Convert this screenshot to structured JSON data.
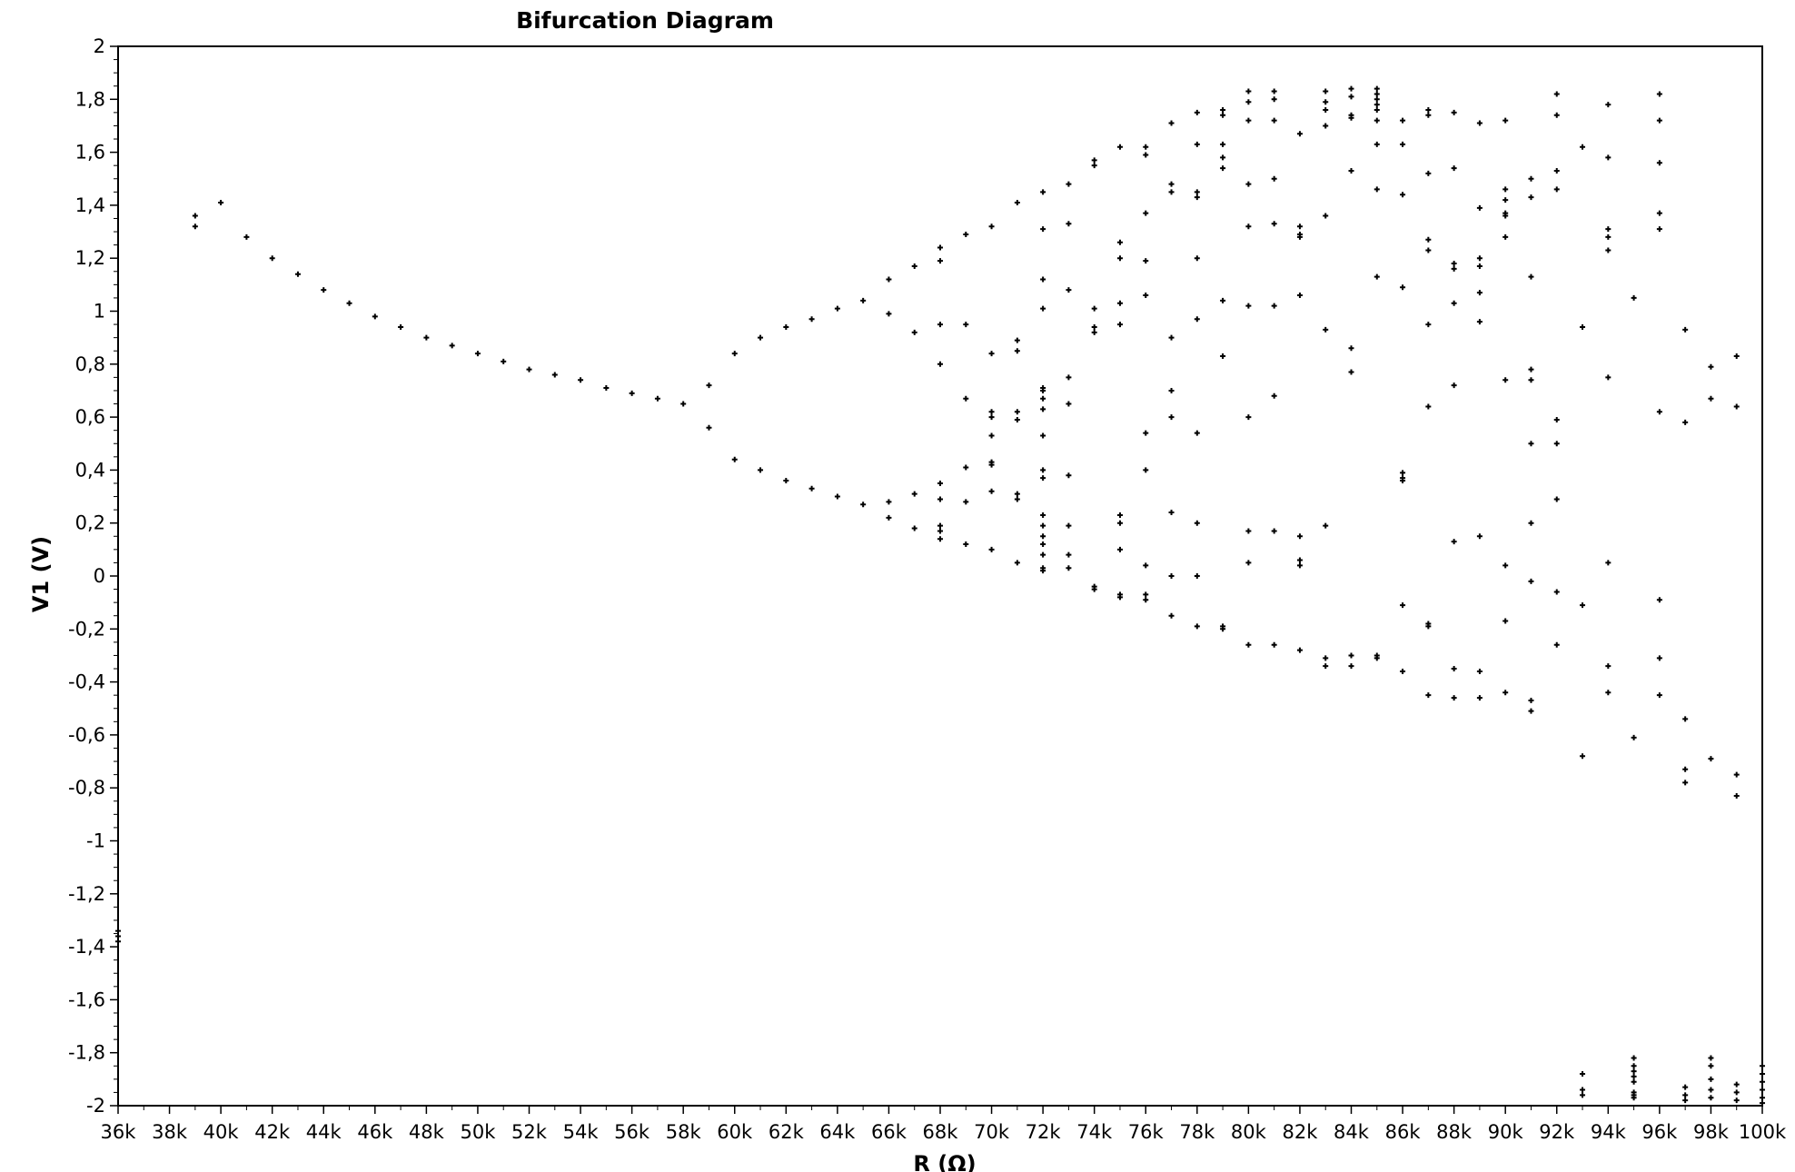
{
  "chart_data": {
    "type": "scatter",
    "title": "Bifurcation  Diagram",
    "xlabel": "R  (Ω)",
    "ylabel": "V1 (V)",
    "xlim": [
      36,
      100
    ],
    "ylim": [
      -2,
      2
    ],
    "x_unit_suffix": "k",
    "x_ticks": [
      "36k",
      "38k",
      "40k",
      "42k",
      "44k",
      "46k",
      "48k",
      "50k",
      "52k",
      "54k",
      "56k",
      "58k",
      "60k",
      "62k",
      "64k",
      "66k",
      "68k",
      "70k",
      "72k",
      "74k",
      "76k",
      "78k",
      "80k",
      "82k",
      "84k",
      "86k",
      "88k",
      "90k",
      "92k",
      "94k",
      "96k",
      "98k",
      "100k"
    ],
    "y_ticks": [
      "2",
      "1,8",
      "1,6",
      "1,4",
      "1,2",
      "1",
      "0,8",
      "0,6",
      "0,4",
      "0,2",
      "0",
      "-0,2",
      "-0,4",
      "-0,6",
      "-0,8",
      "-1",
      "-1,2",
      "-1,4",
      "-1,6",
      "-1,8",
      "-2"
    ],
    "grid": false,
    "marker_color": "#000000",
    "points": [
      [
        36,
        -1.36
      ],
      [
        36,
        -1.38
      ],
      [
        36,
        -1.34
      ],
      [
        39,
        1.36
      ],
      [
        39,
        1.32
      ],
      [
        40,
        1.41
      ],
      [
        41,
        1.28
      ],
      [
        42,
        1.2
      ],
      [
        43,
        1.14
      ],
      [
        44,
        1.08
      ],
      [
        45,
        1.03
      ],
      [
        46,
        0.98
      ],
      [
        47,
        0.94
      ],
      [
        48,
        0.9
      ],
      [
        49,
        0.87
      ],
      [
        50,
        0.84
      ],
      [
        51,
        0.81
      ],
      [
        52,
        0.78
      ],
      [
        53,
        0.76
      ],
      [
        54,
        0.74
      ],
      [
        55,
        0.71
      ],
      [
        56,
        0.69
      ],
      [
        57,
        0.67
      ],
      [
        58,
        0.65
      ],
      [
        59,
        0.72
      ],
      [
        59,
        0.56
      ],
      [
        60,
        0.84
      ],
      [
        60,
        0.44
      ],
      [
        61,
        0.9
      ],
      [
        61,
        0.4
      ],
      [
        62,
        0.94
      ],
      [
        62,
        0.36
      ],
      [
        63,
        0.97
      ],
      [
        63,
        0.33
      ],
      [
        64,
        1.01
      ],
      [
        64,
        0.3
      ],
      [
        65,
        1.04
      ],
      [
        65,
        0.27
      ],
      [
        66,
        1.12
      ],
      [
        66,
        0.99
      ],
      [
        66,
        0.28
      ],
      [
        66,
        0.22
      ],
      [
        67,
        1.17
      ],
      [
        67,
        0.92
      ],
      [
        67,
        0.31
      ],
      [
        67,
        0.18
      ],
      [
        68,
        1.24
      ],
      [
        68,
        1.19
      ],
      [
        68,
        0.95
      ],
      [
        68,
        0.8
      ],
      [
        68,
        0.35
      ],
      [
        68,
        0.29
      ],
      [
        68,
        0.19
      ],
      [
        68,
        0.17
      ],
      [
        68,
        0.14
      ],
      [
        69,
        1.29
      ],
      [
        69,
        0.95
      ],
      [
        69,
        0.67
      ],
      [
        69,
        0.41
      ],
      [
        69,
        0.28
      ],
      [
        69,
        0.12
      ],
      [
        70,
        1.32
      ],
      [
        70,
        0.84
      ],
      [
        70,
        0.62
      ],
      [
        70,
        0.6
      ],
      [
        70,
        0.53
      ],
      [
        70,
        0.43
      ],
      [
        70,
        0.42
      ],
      [
        70,
        0.32
      ],
      [
        70,
        0.1
      ],
      [
        71,
        1.41
      ],
      [
        71,
        0.89
      ],
      [
        71,
        0.85
      ],
      [
        71,
        0.62
      ],
      [
        71,
        0.59
      ],
      [
        71,
        0.31
      ],
      [
        71,
        0.29
      ],
      [
        71,
        0.05
      ],
      [
        72,
        1.45
      ],
      [
        72,
        1.31
      ],
      [
        72,
        1.12
      ],
      [
        72,
        1.01
      ],
      [
        72,
        0.71
      ],
      [
        72,
        0.7
      ],
      [
        72,
        0.67
      ],
      [
        72,
        0.63
      ],
      [
        72,
        0.53
      ],
      [
        72,
        0.4
      ],
      [
        72,
        0.37
      ],
      [
        72,
        0.23
      ],
      [
        72,
        0.19
      ],
      [
        72,
        0.15
      ],
      [
        72,
        0.12
      ],
      [
        72,
        0.08
      ],
      [
        72,
        0.03
      ],
      [
        72,
        0.02
      ],
      [
        73,
        1.48
      ],
      [
        73,
        1.33
      ],
      [
        73,
        1.08
      ],
      [
        73,
        0.75
      ],
      [
        73,
        0.65
      ],
      [
        73,
        0.38
      ],
      [
        73,
        0.19
      ],
      [
        73,
        0.08
      ],
      [
        73,
        0.03
      ],
      [
        74,
        1.57
      ],
      [
        74,
        1.55
      ],
      [
        74,
        1.01
      ],
      [
        74,
        0.94
      ],
      [
        74,
        0.92
      ],
      [
        74,
        -0.04
      ],
      [
        74,
        -0.05
      ],
      [
        75,
        1.62
      ],
      [
        75,
        1.26
      ],
      [
        75,
        1.2
      ],
      [
        75,
        1.03
      ],
      [
        75,
        0.95
      ],
      [
        75,
        0.23
      ],
      [
        75,
        0.2
      ],
      [
        75,
        0.1
      ],
      [
        75,
        -0.07
      ],
      [
        75,
        -0.08
      ],
      [
        76,
        1.62
      ],
      [
        76,
        1.59
      ],
      [
        76,
        1.37
      ],
      [
        76,
        1.19
      ],
      [
        76,
        1.06
      ],
      [
        76,
        0.54
      ],
      [
        76,
        0.4
      ],
      [
        76,
        0.04
      ],
      [
        76,
        -0.07
      ],
      [
        76,
        -0.09
      ],
      [
        77,
        1.71
      ],
      [
        77,
        1.48
      ],
      [
        77,
        1.45
      ],
      [
        77,
        0.9
      ],
      [
        77,
        0.7
      ],
      [
        77,
        0.6
      ],
      [
        77,
        0.24
      ],
      [
        77,
        0.0
      ],
      [
        77,
        -0.15
      ],
      [
        78,
        1.75
      ],
      [
        78,
        1.63
      ],
      [
        78,
        1.45
      ],
      [
        78,
        1.43
      ],
      [
        78,
        1.2
      ],
      [
        78,
        0.97
      ],
      [
        78,
        0.54
      ],
      [
        78,
        0.2
      ],
      [
        78,
        0.0
      ],
      [
        78,
        -0.19
      ],
      [
        79,
        1.76
      ],
      [
        79,
        1.74
      ],
      [
        79,
        1.63
      ],
      [
        79,
        1.58
      ],
      [
        79,
        1.54
      ],
      [
        79,
        1.04
      ],
      [
        79,
        0.83
      ],
      [
        79,
        -0.19
      ],
      [
        79,
        -0.2
      ],
      [
        80,
        1.83
      ],
      [
        80,
        1.79
      ],
      [
        80,
        1.72
      ],
      [
        80,
        1.48
      ],
      [
        80,
        1.32
      ],
      [
        80,
        1.02
      ],
      [
        80,
        0.6
      ],
      [
        80,
        0.17
      ],
      [
        80,
        0.05
      ],
      [
        80,
        -0.26
      ],
      [
        81,
        1.83
      ],
      [
        81,
        1.8
      ],
      [
        81,
        1.72
      ],
      [
        81,
        1.5
      ],
      [
        81,
        1.33
      ],
      [
        81,
        1.02
      ],
      [
        81,
        0.68
      ],
      [
        81,
        0.17
      ],
      [
        81,
        -0.26
      ],
      [
        82,
        1.67
      ],
      [
        82,
        1.32
      ],
      [
        82,
        1.29
      ],
      [
        82,
        1.28
      ],
      [
        82,
        1.06
      ],
      [
        82,
        0.15
      ],
      [
        82,
        0.06
      ],
      [
        82,
        0.04
      ],
      [
        82,
        -0.28
      ],
      [
        83,
        1.83
      ],
      [
        83,
        1.79
      ],
      [
        83,
        1.76
      ],
      [
        83,
        1.7
      ],
      [
        83,
        1.36
      ],
      [
        83,
        0.93
      ],
      [
        83,
        0.19
      ],
      [
        83,
        -0.31
      ],
      [
        83,
        -0.34
      ],
      [
        84,
        1.84
      ],
      [
        84,
        1.81
      ],
      [
        84,
        1.74
      ],
      [
        84,
        1.73
      ],
      [
        84,
        1.53
      ],
      [
        84,
        0.86
      ],
      [
        84,
        0.77
      ],
      [
        84,
        -0.3
      ],
      [
        84,
        -0.34
      ],
      [
        85,
        1.84
      ],
      [
        85,
        1.82
      ],
      [
        85,
        1.8
      ],
      [
        85,
        1.78
      ],
      [
        85,
        1.76
      ],
      [
        85,
        1.72
      ],
      [
        85,
        1.63
      ],
      [
        85,
        1.46
      ],
      [
        85,
        1.13
      ],
      [
        85,
        -0.3
      ],
      [
        85,
        -0.31
      ],
      [
        86,
        1.72
      ],
      [
        86,
        1.63
      ],
      [
        86,
        1.44
      ],
      [
        86,
        1.09
      ],
      [
        86,
        0.39
      ],
      [
        86,
        0.37
      ],
      [
        86,
        0.36
      ],
      [
        86,
        -0.11
      ],
      [
        86,
        -0.36
      ],
      [
        87,
        1.76
      ],
      [
        87,
        1.74
      ],
      [
        87,
        1.52
      ],
      [
        87,
        1.27
      ],
      [
        87,
        1.23
      ],
      [
        87,
        0.95
      ],
      [
        87,
        0.64
      ],
      [
        87,
        -0.18
      ],
      [
        87,
        -0.19
      ],
      [
        87,
        -0.45
      ],
      [
        88,
        1.75
      ],
      [
        88,
        1.54
      ],
      [
        88,
        1.18
      ],
      [
        88,
        1.16
      ],
      [
        88,
        1.03
      ],
      [
        88,
        0.72
      ],
      [
        88,
        0.13
      ],
      [
        88,
        -0.35
      ],
      [
        88,
        -0.46
      ],
      [
        89,
        1.71
      ],
      [
        89,
        1.39
      ],
      [
        89,
        1.2
      ],
      [
        89,
        1.17
      ],
      [
        89,
        1.07
      ],
      [
        89,
        0.96
      ],
      [
        89,
        0.15
      ],
      [
        89,
        -0.36
      ],
      [
        89,
        -0.46
      ],
      [
        90,
        1.72
      ],
      [
        90,
        1.46
      ],
      [
        90,
        1.42
      ],
      [
        90,
        1.37
      ],
      [
        90,
        1.36
      ],
      [
        90,
        1.28
      ],
      [
        90,
        0.74
      ],
      [
        90,
        0.04
      ],
      [
        90,
        -0.17
      ],
      [
        90,
        -0.44
      ],
      [
        91,
        1.5
      ],
      [
        91,
        1.43
      ],
      [
        91,
        1.13
      ],
      [
        91,
        0.78
      ],
      [
        91,
        0.74
      ],
      [
        91,
        0.5
      ],
      [
        91,
        0.2
      ],
      [
        91,
        -0.02
      ],
      [
        91,
        -0.47
      ],
      [
        91,
        -0.51
      ],
      [
        92,
        1.82
      ],
      [
        92,
        1.74
      ],
      [
        92,
        1.53
      ],
      [
        92,
        1.46
      ],
      [
        92,
        0.59
      ],
      [
        92,
        0.5
      ],
      [
        92,
        0.29
      ],
      [
        92,
        -0.06
      ],
      [
        92,
        -0.26
      ],
      [
        93,
        1.62
      ],
      [
        93,
        0.94
      ],
      [
        93,
        -0.11
      ],
      [
        93,
        -0.68
      ],
      [
        93,
        -1.88
      ],
      [
        93,
        -1.94
      ],
      [
        93,
        -1.96
      ],
      [
        94,
        1.78
      ],
      [
        94,
        1.58
      ],
      [
        94,
        1.31
      ],
      [
        94,
        1.28
      ],
      [
        94,
        1.23
      ],
      [
        94,
        0.75
      ],
      [
        94,
        0.05
      ],
      [
        94,
        -0.34
      ],
      [
        94,
        -0.44
      ],
      [
        95,
        1.05
      ],
      [
        95,
        -0.61
      ],
      [
        95,
        -1.82
      ],
      [
        95,
        -1.85
      ],
      [
        95,
        -1.87
      ],
      [
        95,
        -1.89
      ],
      [
        95,
        -1.91
      ],
      [
        95,
        -1.95
      ],
      [
        95,
        -1.96
      ],
      [
        95,
        -1.97
      ],
      [
        96,
        1.82
      ],
      [
        96,
        1.72
      ],
      [
        96,
        1.56
      ],
      [
        96,
        1.37
      ],
      [
        96,
        1.31
      ],
      [
        96,
        0.62
      ],
      [
        96,
        -0.09
      ],
      [
        96,
        -0.31
      ],
      [
        96,
        -0.45
      ],
      [
        97,
        0.93
      ],
      [
        97,
        0.58
      ],
      [
        97,
        -0.54
      ],
      [
        97,
        -0.73
      ],
      [
        97,
        -0.78
      ],
      [
        97,
        -1.93
      ],
      [
        97,
        -1.96
      ],
      [
        97,
        -1.98
      ],
      [
        98,
        0.79
      ],
      [
        98,
        0.67
      ],
      [
        98,
        -0.69
      ],
      [
        98,
        -1.82
      ],
      [
        98,
        -1.85
      ],
      [
        98,
        -1.9
      ],
      [
        98,
        -1.94
      ],
      [
        98,
        -1.97
      ],
      [
        99,
        0.83
      ],
      [
        99,
        0.64
      ],
      [
        99,
        -0.75
      ],
      [
        99,
        -0.83
      ],
      [
        99,
        -1.92
      ],
      [
        99,
        -1.95
      ],
      [
        99,
        -1.98
      ],
      [
        100,
        -1.85
      ],
      [
        100,
        -1.88
      ],
      [
        100,
        -1.91
      ],
      [
        100,
        -1.94
      ],
      [
        100,
        -1.97
      ],
      [
        100,
        -1.99
      ]
    ]
  }
}
